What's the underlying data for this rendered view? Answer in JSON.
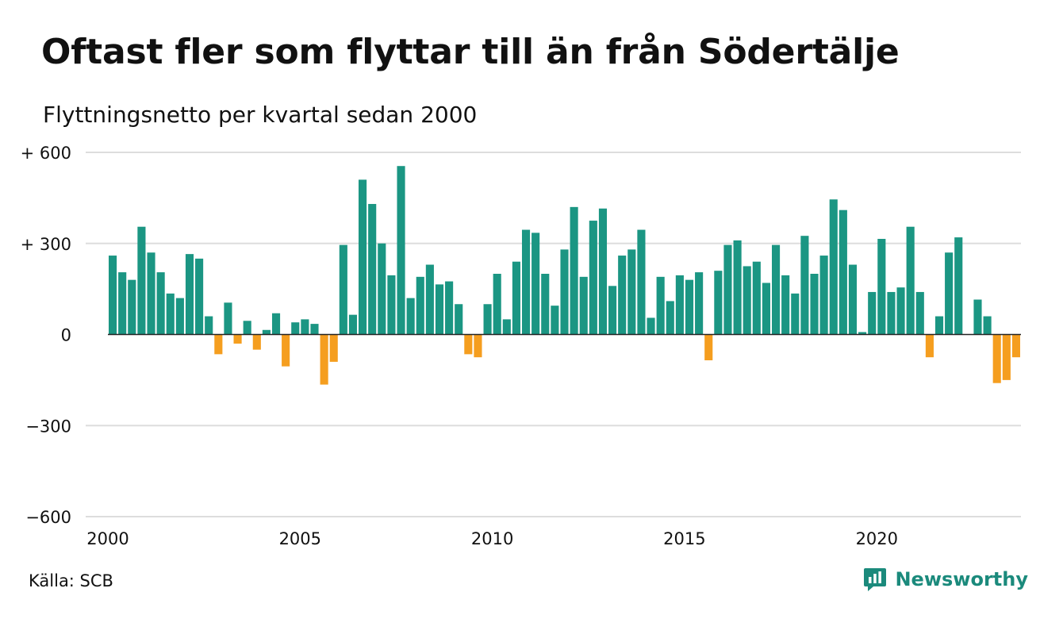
{
  "chart_data": {
    "type": "bar",
    "title": "Oftast fler som flyttar till än från Södertälje",
    "subtitle": "Flyttningsnetto per kvartal sedan 2000",
    "x_start_year": 2000,
    "periods_per_year": 4,
    "ylim": [
      -600,
      600
    ],
    "y_ticks": [
      600,
      300,
      0,
      -300,
      -600
    ],
    "y_tick_labels": [
      "+ 600",
      "+ 300",
      "0",
      "−300",
      "−600"
    ],
    "x_ticks": [
      2000,
      2005,
      2010,
      2015,
      2020
    ],
    "x_tick_labels": [
      "2000",
      "2005",
      "2010",
      "2015",
      "2020"
    ],
    "grid": true,
    "colors": {
      "positive": "#1b9683",
      "negative": "#f59e1f",
      "grid": "#dddddd",
      "axis": "#222222"
    },
    "values": [
      260,
      205,
      180,
      355,
      270,
      205,
      135,
      120,
      265,
      250,
      60,
      -65,
      105,
      -30,
      45,
      -50,
      15,
      70,
      -105,
      40,
      50,
      35,
      -165,
      -90,
      295,
      65,
      510,
      430,
      300,
      195,
      555,
      120,
      190,
      230,
      165,
      175,
      100,
      -65,
      -75,
      100,
      200,
      50,
      240,
      345,
      335,
      200,
      95,
      280,
      420,
      190,
      375,
      415,
      160,
      260,
      280,
      345,
      55,
      190,
      110,
      195,
      180,
      205,
      -85,
      210,
      295,
      310,
      225,
      240,
      170,
      295,
      195,
      135,
      325,
      200,
      260,
      445,
      410,
      230,
      8,
      140,
      315,
      140,
      155,
      355,
      140,
      -75,
      60,
      270,
      320,
      0,
      115,
      60,
      -160,
      -150,
      -75
    ]
  },
  "source": "Källa: SCB",
  "brand": {
    "name": "Newsworthy",
    "icon": "newsworthy-logo-icon",
    "color": "#1b8a7c"
  }
}
